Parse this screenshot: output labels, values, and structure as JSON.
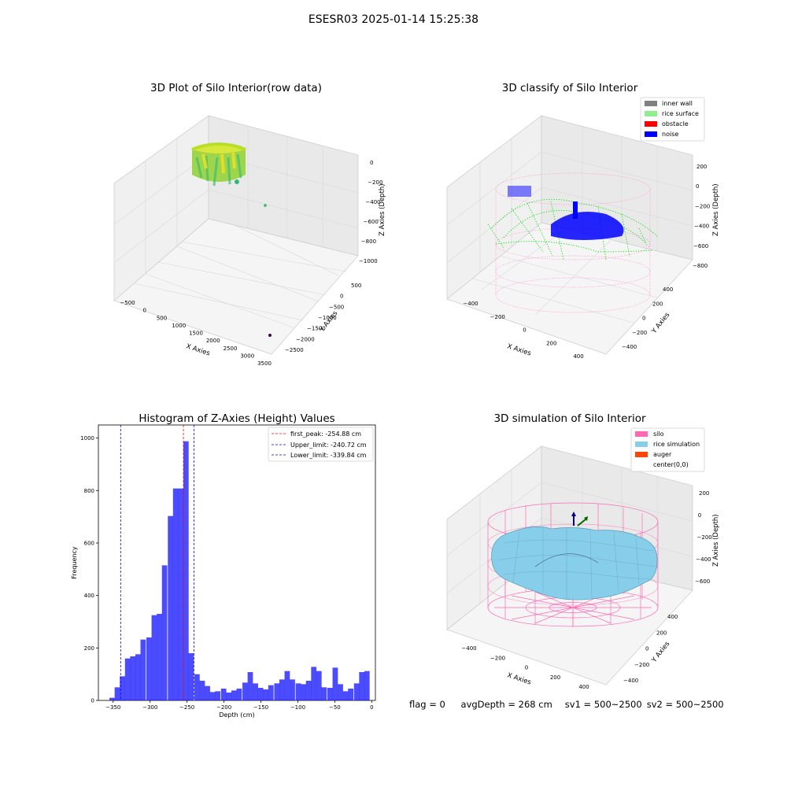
{
  "suptitle": "ESESR03 2025-01-14 15:25:38",
  "footer": {
    "flag": "flag = 0",
    "avg_depth": "avgDepth = 268 cm",
    "sv1": "sv1 = 500~2500",
    "sv2": "sv2 = 500~2500"
  },
  "colors": {
    "histogram_bar": "#0000ff",
    "first_peak": "#ff0000",
    "limits": "#0000ff",
    "inner_wall": "#808080",
    "rice_surface": "#90ee90",
    "obstacle": "#ff0000",
    "noise": "#0000ff",
    "silo": "#ff69b4",
    "rice_simulation": "#87ceeb",
    "auger": "#ff4500"
  },
  "chart_data": [
    {
      "type": "scatter",
      "projection": "3d",
      "title": "3D Plot of Silo Interior(row data)",
      "xlabel": "X Axies",
      "ylabel": "Y Axies",
      "zlabel": "Z Axies (Depth)",
      "x_ticks": [
        "−500",
        "0",
        "500",
        "1000",
        "1500",
        "2000",
        "2500",
        "3000",
        "3500"
      ],
      "y_ticks": [
        "500",
        "0",
        "−500",
        "−1000",
        "−1500",
        "−2000",
        "−2500"
      ],
      "z_ticks": [
        "0",
        "−200",
        "−400",
        "−600",
        "−800",
        "−1000"
      ],
      "grid": true,
      "colormap": "viridis"
    },
    {
      "type": "scatter",
      "projection": "3d",
      "title": "3D classify of Silo Interior",
      "xlabel": "X Axies",
      "ylabel": "Y Axies",
      "zlabel": "Z Axies (Depth)",
      "x_ticks": [
        "−400",
        "−200",
        "0",
        "200",
        "400"
      ],
      "y_ticks": [
        "400",
        "200",
        "0",
        "−200",
        "−400"
      ],
      "z_ticks": [
        "200",
        "0",
        "−200",
        "−400",
        "−600",
        "−800"
      ],
      "grid": true,
      "legend": {
        "position": "top-right",
        "entries": [
          "inner wall",
          "rice surface",
          "obstacle",
          "noise"
        ]
      }
    },
    {
      "type": "bar",
      "title": "Histogram of Z-Axies (Height) Values",
      "xlabel": "Depth (cm)",
      "ylabel": "Frequency",
      "xlim": [
        -370,
        5
      ],
      "ylim": [
        0,
        1050
      ],
      "x_ticks": [
        "−350",
        "−300",
        "−250",
        "−200",
        "−150",
        "−100",
        "−50",
        "0"
      ],
      "y_ticks": [
        "0",
        "200",
        "400",
        "600",
        "800",
        "1000"
      ],
      "bin_width": 7.2,
      "bins": [
        [
          -355,
          10
        ],
        [
          -348,
          50
        ],
        [
          -341,
          92
        ],
        [
          -334,
          160
        ],
        [
          -327,
          168
        ],
        [
          -320,
          176
        ],
        [
          -313,
          232
        ],
        [
          -305,
          240
        ],
        [
          -298,
          325
        ],
        [
          -291,
          330
        ],
        [
          -284,
          515
        ],
        [
          -276,
          703
        ],
        [
          -269,
          808
        ],
        [
          -262,
          808
        ],
        [
          -255,
          988
        ],
        [
          -248,
          180
        ],
        [
          -240,
          100
        ],
        [
          -233,
          75
        ],
        [
          -226,
          55
        ],
        [
          -219,
          32
        ],
        [
          -212,
          35
        ],
        [
          -204,
          45
        ],
        [
          -197,
          30
        ],
        [
          -190,
          38
        ],
        [
          -183,
          45
        ],
        [
          -175,
          68
        ],
        [
          -168,
          108
        ],
        [
          -161,
          65
        ],
        [
          -154,
          48
        ],
        [
          -147,
          42
        ],
        [
          -140,
          58
        ],
        [
          -132,
          65
        ],
        [
          -125,
          80
        ],
        [
          -118,
          112
        ],
        [
          -111,
          80
        ],
        [
          -103,
          65
        ],
        [
          -96,
          62
        ],
        [
          -89,
          75
        ],
        [
          -82,
          128
        ],
        [
          -75,
          112
        ],
        [
          -68,
          50
        ],
        [
          -60,
          48
        ],
        [
          -53,
          125
        ],
        [
          -46,
          62
        ],
        [
          -39,
          35
        ],
        [
          -32,
          45
        ],
        [
          -24,
          65
        ],
        [
          -17,
          108
        ],
        [
          -10,
          112
        ]
      ],
      "lines": [
        {
          "label": "first_peak: -254.88 cm",
          "x": -254.88,
          "color": "#ff0000"
        },
        {
          "label": "Upper_limit: -240.72 cm",
          "x": -240.72,
          "color": "#0000ff"
        },
        {
          "label": "Lower_limit: -339.84 cm",
          "x": -339.84,
          "color": "#0000ff"
        }
      ],
      "legend": {
        "position": "top-right"
      }
    },
    {
      "type": "surface",
      "projection": "3d",
      "title": "3D simulation of Silo Interior",
      "xlabel": "X Axies",
      "ylabel": "Y Axies",
      "zlabel": "Z Axies (Depth)",
      "x_ticks": [
        "−400",
        "−200",
        "0",
        "200",
        "400"
      ],
      "y_ticks": [
        "400",
        "200",
        "0",
        "−200",
        "−400"
      ],
      "z_ticks": [
        "200",
        "0",
        "−200",
        "−400",
        "−600"
      ],
      "grid": true,
      "legend": {
        "position": "top-right",
        "entries": [
          "silo",
          "rice simulation",
          "auger",
          "center(0,0)"
        ]
      }
    }
  ]
}
